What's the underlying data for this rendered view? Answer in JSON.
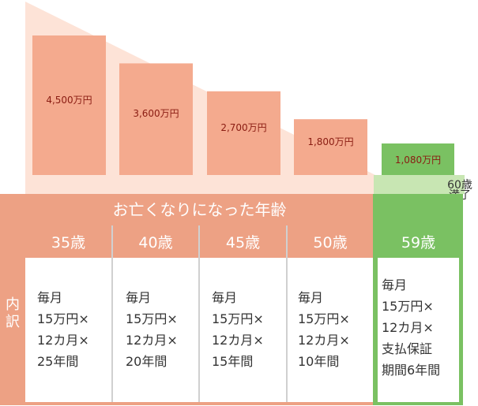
{
  "chart_data": {
    "type": "bar",
    "categories": [
      "35歳",
      "40歳",
      "45歳",
      "50歳",
      "59歳"
    ],
    "values": [
      4500,
      3600,
      2700,
      1800,
      1080
    ],
    "data_labels": [
      "4,500万円",
      "3,600万円",
      "2,700万円",
      "1,800万円",
      "1,080万円"
    ],
    "title": "",
    "xlabel": "お亡くなりになった年齢",
    "ylabel": "",
    "ylim": [
      0,
      4500
    ],
    "colors": {
      "bar": "#f4aa8e",
      "bar_last": "#7ac162",
      "triangle": "#fde3d7"
    }
  },
  "table": {
    "header": "お亡くなりになった年齢",
    "side_label": "内\n訳",
    "full_term_label": "60歳\n満了",
    "columns": [
      {
        "age": "35歳",
        "detail": "毎月\n15万円×\n12カ月×\n25年間"
      },
      {
        "age": "40歳",
        "detail": "毎月\n15万円×\n12カ月×\n20年間"
      },
      {
        "age": "45歳",
        "detail": "毎月\n15万円×\n12カ月×\n15年間"
      },
      {
        "age": "50歳",
        "detail": "毎月\n15万円×\n12カ月×\n10年間"
      },
      {
        "age": "59歳",
        "detail": "毎月\n15万円×\n12カ月×\n支払保証\n期間6年間"
      }
    ]
  },
  "colors": {
    "salmon": "#eda184",
    "green": "#7ac162",
    "light_green": "#c8e6b3"
  }
}
